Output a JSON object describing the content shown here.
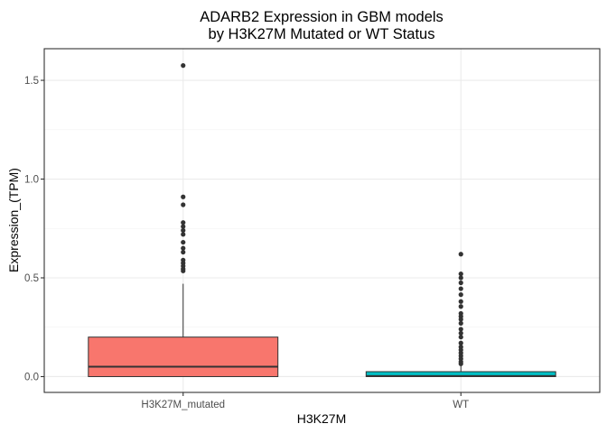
{
  "chart_data": {
    "type": "box",
    "title_line1": "ADARB2 Expression in GBM models",
    "title_line2": "by H3K27M Mutated or WT Status",
    "xlabel": "H3K27M",
    "ylabel": "Expression_(TPM)",
    "ylim": [
      -0.08,
      1.66
    ],
    "y_ticks": [
      0.0,
      0.5,
      1.0,
      1.5
    ],
    "y_tick_labels": [
      "0.0",
      "0.5",
      "1.0",
      "1.5"
    ],
    "grid": true,
    "legend": "none",
    "categories": [
      "H3K27M_mutated",
      "WT"
    ],
    "series": [
      {
        "category": "H3K27M_mutated",
        "color": "#F8766D",
        "q1": 0.0,
        "median": 0.05,
        "q3": 0.2,
        "whisker_low": 0.0,
        "whisker_high": 0.47,
        "outliers": [
          1.575,
          0.91,
          0.87,
          0.78,
          0.76,
          0.74,
          0.72,
          0.68,
          0.65,
          0.63,
          0.59,
          0.575,
          0.56,
          0.545,
          0.535
        ]
      },
      {
        "category": "WT",
        "color": "#00BFC4",
        "q1": 0.0,
        "median": 0.003,
        "q3": 0.025,
        "whisker_low": 0.0,
        "whisker_high": 0.06,
        "outliers": [
          0.62,
          0.52,
          0.5,
          0.475,
          0.445,
          0.415,
          0.38,
          0.355,
          0.32,
          0.305,
          0.29,
          0.27,
          0.24,
          0.22,
          0.2,
          0.17,
          0.15,
          0.135,
          0.12,
          0.105,
          0.09,
          0.075,
          0.065
        ]
      }
    ]
  }
}
